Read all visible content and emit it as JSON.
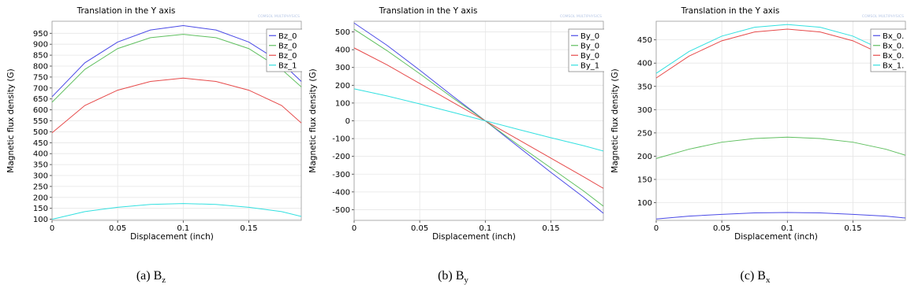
{
  "chart_data": [
    {
      "type": "line",
      "title": "Translation in the Y axis",
      "watermark": "COMSOL MULTIPHYSICS",
      "xlabel": "Displacement (inch)",
      "ylabel": "Magnetic flux density (G)",
      "xlim": [
        0,
        0.19
      ],
      "ylim": [
        95,
        1005
      ],
      "xticks": [
        0,
        0.05,
        0.1,
        0.15
      ],
      "yticks": [
        100,
        150,
        200,
        250,
        300,
        350,
        400,
        450,
        500,
        550,
        600,
        650,
        700,
        750,
        800,
        850,
        900,
        950
      ],
      "grid": true,
      "legend_position": "top-right",
      "caption": {
        "label": "(a) B",
        "sub": "z"
      },
      "series": [
        {
          "name": "Bz_0",
          "color": "#4a4ae6",
          "x": [
            0,
            0.025,
            0.05,
            0.075,
            0.1,
            0.125,
            0.15,
            0.175,
            0.19
          ],
          "y": [
            660,
            815,
            910,
            965,
            985,
            965,
            910,
            815,
            730
          ]
        },
        {
          "name": "Bz_0",
          "color": "#5fbf5f",
          "x": [
            0,
            0.025,
            0.05,
            0.075,
            0.1,
            0.125,
            0.15,
            0.175,
            0.19
          ],
          "y": [
            635,
            785,
            880,
            930,
            945,
            930,
            880,
            785,
            705
          ]
        },
        {
          "name": "Bz_0",
          "color": "#e64a4a",
          "x": [
            0,
            0.025,
            0.05,
            0.075,
            0.1,
            0.125,
            0.15,
            0.175,
            0.19
          ],
          "y": [
            495,
            620,
            690,
            730,
            745,
            730,
            690,
            620,
            540
          ]
        },
        {
          "name": "Bz_1",
          "color": "#33e0e0",
          "x": [
            0,
            0.025,
            0.05,
            0.075,
            0.1,
            0.125,
            0.15,
            0.175,
            0.19
          ],
          "y": [
            100,
            135,
            155,
            168,
            172,
            168,
            155,
            135,
            113
          ]
        }
      ]
    },
    {
      "type": "line",
      "title": "Translation in the Y axis",
      "watermark": "COMSOL MULTIPHYSICS",
      "xlabel": "Displacement (inch)",
      "ylabel": "Magnetic flux density (G)",
      "xlim": [
        0,
        0.19
      ],
      "ylim": [
        -560,
        560
      ],
      "xticks": [
        0,
        0.05,
        0.1,
        0.15
      ],
      "yticks": [
        -500,
        -400,
        -300,
        -200,
        -100,
        0,
        100,
        200,
        300,
        400,
        500
      ],
      "grid": true,
      "legend_position": "top-right",
      "caption": {
        "label": "(b) B",
        "sub": "y"
      },
      "series": [
        {
          "name": "By_0",
          "color": "#4a4ae6",
          "x": [
            0,
            0.025,
            0.05,
            0.075,
            0.1,
            0.125,
            0.15,
            0.175,
            0.19
          ],
          "y": [
            550,
            425,
            285,
            140,
            0,
            -145,
            -290,
            -430,
            -520
          ]
        },
        {
          "name": "By_0",
          "color": "#5fbf5f",
          "x": [
            0,
            0.025,
            0.05,
            0.075,
            0.1,
            0.125,
            0.15,
            0.175,
            0.19
          ],
          "y": [
            515,
            395,
            265,
            130,
            0,
            -135,
            -265,
            -395,
            -480
          ]
        },
        {
          "name": "By_0",
          "color": "#e64a4a",
          "x": [
            0,
            0.025,
            0.05,
            0.075,
            0.1,
            0.125,
            0.15,
            0.175,
            0.19
          ],
          "y": [
            410,
            315,
            210,
            105,
            0,
            -105,
            -210,
            -315,
            -380
          ]
        },
        {
          "name": "By_1",
          "color": "#33e0e0",
          "x": [
            0,
            0.025,
            0.05,
            0.075,
            0.1,
            0.125,
            0.15,
            0.175,
            0.19
          ],
          "y": [
            180,
            140,
            95,
            48,
            0,
            -48,
            -95,
            -140,
            -170
          ]
        }
      ]
    },
    {
      "type": "line",
      "title": "Translation in the Y axis",
      "watermark": "COMSOL MULTIPHYSICS",
      "xlabel": "Displacement (inch)",
      "ylabel": "Magnetic flux density (G)",
      "xlim": [
        0,
        0.19
      ],
      "ylim": [
        62,
        490
      ],
      "xticks": [
        0,
        0.05,
        0.1,
        0.15
      ],
      "yticks": [
        100,
        150,
        200,
        250,
        300,
        350,
        400,
        450
      ],
      "grid": true,
      "legend_position": "top-right",
      "caption": {
        "label": "(c) B",
        "sub": "x"
      },
      "series": [
        {
          "name": "Bx_0.",
          "color": "#4a4ae6",
          "x": [
            0,
            0.025,
            0.05,
            0.075,
            0.1,
            0.125,
            0.15,
            0.175,
            0.19
          ],
          "y": [
            65,
            71,
            75,
            78,
            79,
            78,
            75,
            71,
            67
          ]
        },
        {
          "name": "Bx_0.",
          "color": "#5fbf5f",
          "x": [
            0,
            0.025,
            0.05,
            0.075,
            0.1,
            0.125,
            0.15,
            0.175,
            0.19
          ],
          "y": [
            195,
            215,
            230,
            238,
            241,
            238,
            230,
            215,
            202
          ]
        },
        {
          "name": "Bx_0.",
          "color": "#e64a4a",
          "x": [
            0,
            0.025,
            0.05,
            0.075,
            0.1,
            0.125,
            0.15,
            0.175,
            0.19
          ],
          "y": [
            368,
            415,
            448,
            467,
            473,
            467,
            448,
            415,
            390
          ]
        },
        {
          "name": "Bx_1.",
          "color": "#33e0e0",
          "x": [
            0,
            0.025,
            0.05,
            0.075,
            0.1,
            0.125,
            0.15,
            0.175,
            0.19
          ],
          "y": [
            378,
            425,
            458,
            477,
            483,
            477,
            458,
            425,
            400
          ]
        }
      ]
    }
  ]
}
